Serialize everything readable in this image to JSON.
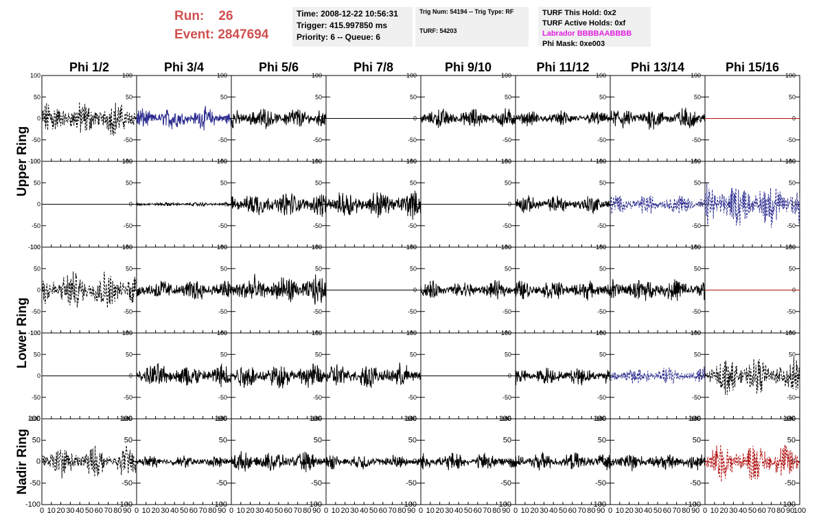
{
  "header": {
    "run_label": "Run:",
    "run_value": "26",
    "event_label": "Event:",
    "event_value": "2847694",
    "time": "Time: 2008-12-22 10:56:31",
    "trigger": "Trigger: 415.997850 ms",
    "priority_queue": "Priority: 6 -- Queue: 6",
    "trig_num_type": "Trig Num: 54194 -- Trig Type: RF",
    "turf": "TURF: 54203",
    "turf_this_hold": "TURF This Hold: 0x2",
    "turf_active_holds": "TURF Active Holds: 0xf",
    "labrador": "Labrador BBBBAABBBB",
    "phi_mask": "Phi Mask: 0xe003"
  },
  "chart_data": {
    "type": "line",
    "columns": [
      "Phi 1/2",
      "Phi 3/4",
      "Phi 5/6",
      "Phi 7/8",
      "Phi 9/10",
      "Phi 11/12",
      "Phi 13/14",
      "Phi 15/16"
    ],
    "row_groups": [
      {
        "label": "Upper Ring",
        "rows": [
          0,
          1
        ]
      },
      {
        "label": "Lower Ring",
        "rows": [
          2,
          3
        ]
      },
      {
        "label": "Nadir Ring",
        "rows": [
          4
        ]
      }
    ],
    "xlim": [
      0,
      100
    ],
    "ylim": [
      -100,
      100
    ],
    "x_ticks": [
      "0",
      "10",
      "20",
      "30",
      "40",
      "50",
      "60",
      "70",
      "80",
      "90",
      "100"
    ],
    "y_ticks": [
      "-100",
      "-50",
      "0",
      "50",
      "100"
    ],
    "colors": {
      "black": "#000000",
      "blue": "#2b2b8f",
      "red": "#b01010"
    },
    "panels": [
      [
        {
          "style": "dashed",
          "color": "black",
          "amplitude": 35
        },
        {
          "style": "solid",
          "color": "blue",
          "amplitude": 22
        },
        {
          "style": "solid",
          "color": "black",
          "amplitude": 22
        },
        {
          "style": "flat",
          "color": "black",
          "amplitude": 0
        },
        {
          "style": "solid",
          "color": "black",
          "amplitude": 20
        },
        {
          "style": "solid",
          "color": "black",
          "amplitude": 15
        },
        {
          "style": "solid",
          "color": "black",
          "amplitude": 22
        },
        {
          "style": "flat",
          "color": "red",
          "amplitude": 0
        }
      ],
      [
        {
          "style": "flat",
          "color": "black",
          "amplitude": 0
        },
        {
          "style": "solid",
          "color": "black",
          "amplitude": 4
        },
        {
          "style": "solid",
          "color": "black",
          "amplitude": 25
        },
        {
          "style": "solid",
          "color": "black",
          "amplitude": 28
        },
        {
          "style": "flat",
          "color": "black",
          "amplitude": 0
        },
        {
          "style": "solid",
          "color": "black",
          "amplitude": 18
        },
        {
          "style": "dashed",
          "color": "blue",
          "amplitude": 20
        },
        {
          "style": "dashed",
          "color": "blue",
          "amplitude": 45
        }
      ],
      [
        {
          "style": "dashed",
          "color": "black",
          "amplitude": 38
        },
        {
          "style": "solid",
          "color": "black",
          "amplitude": 22
        },
        {
          "style": "solid",
          "color": "black",
          "amplitude": 30
        },
        {
          "style": "flat",
          "color": "black",
          "amplitude": 0
        },
        {
          "style": "solid",
          "color": "black",
          "amplitude": 18
        },
        {
          "style": "solid",
          "color": "black",
          "amplitude": 20
        },
        {
          "style": "solid",
          "color": "black",
          "amplitude": 24
        },
        {
          "style": "flat",
          "color": "red",
          "amplitude": 0
        }
      ],
      [
        {
          "style": "flat",
          "color": "black",
          "amplitude": 0
        },
        {
          "style": "solid",
          "color": "black",
          "amplitude": 25
        },
        {
          "style": "solid",
          "color": "black",
          "amplitude": 25
        },
        {
          "style": "solid",
          "color": "black",
          "amplitude": 25
        },
        {
          "style": "flat",
          "color": "black",
          "amplitude": 0
        },
        {
          "style": "solid",
          "color": "black",
          "amplitude": 18
        },
        {
          "style": "dashed",
          "color": "blue",
          "amplitude": 18
        },
        {
          "style": "dashed",
          "color": "black",
          "amplitude": 35
        }
      ],
      [
        {
          "style": "dashed",
          "color": "black",
          "amplitude": 30
        },
        {
          "style": "solid",
          "color": "black",
          "amplitude": 12
        },
        {
          "style": "solid",
          "color": "black",
          "amplitude": 20
        },
        {
          "style": "solid",
          "color": "black",
          "amplitude": 15
        },
        {
          "style": "solid",
          "color": "black",
          "amplitude": 18
        },
        {
          "style": "solid",
          "color": "black",
          "amplitude": 18
        },
        {
          "style": "solid",
          "color": "black",
          "amplitude": 18
        },
        {
          "style": "dashed",
          "color": "red",
          "amplitude": 38
        }
      ]
    ]
  }
}
